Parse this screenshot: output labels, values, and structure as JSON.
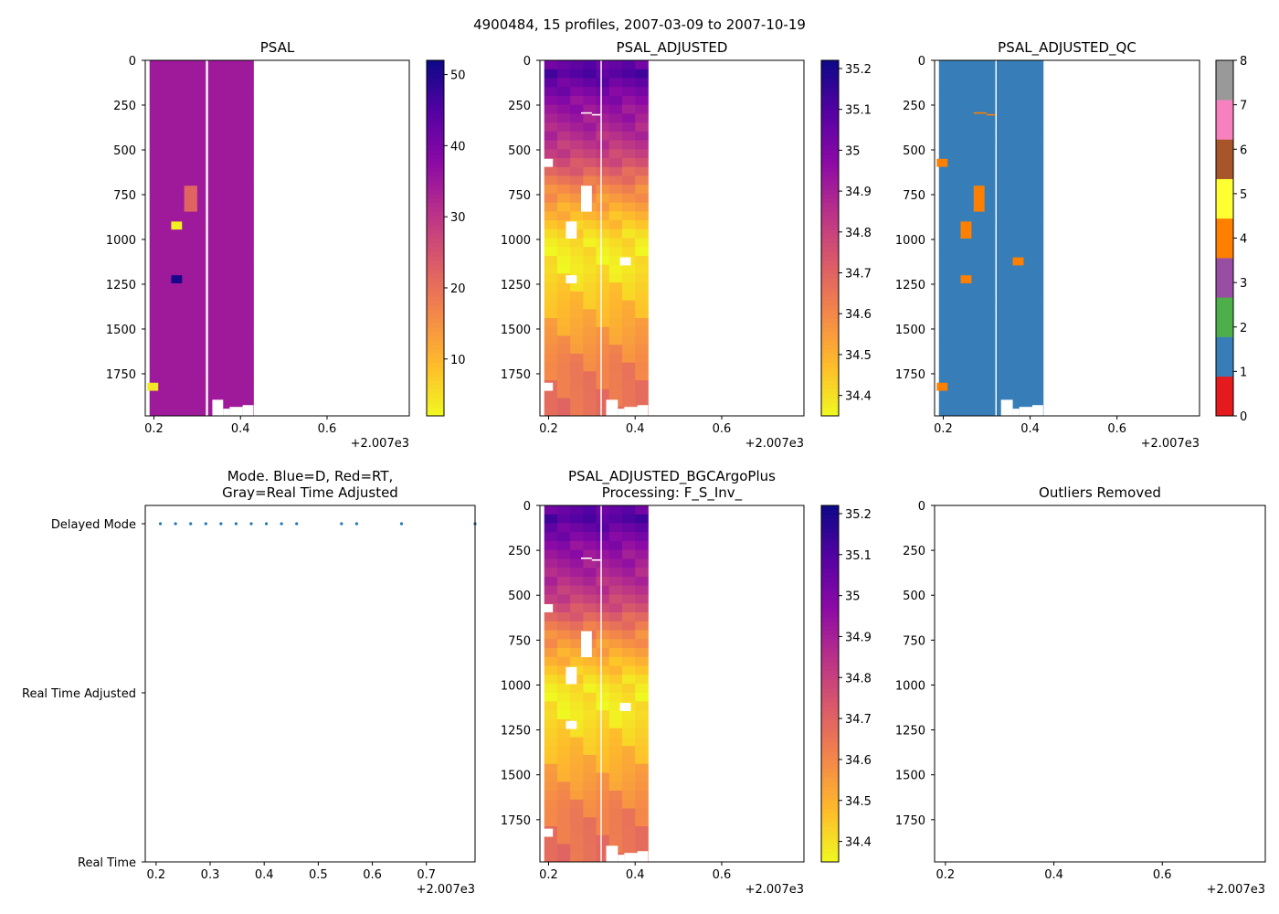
{
  "figure_title": "4900484, 15 profiles, 2007-03-09 to 2007-10-19",
  "chart_data": [
    {
      "id": "psal",
      "type": "heatmap",
      "title": "PSAL",
      "xlim": [
        2007.18,
        2007.79
      ],
      "ylim": [
        1985,
        0
      ],
      "x_ticks": [
        0.2,
        0.4,
        0.6
      ],
      "x_offset_label": "+2.007e3",
      "y_ticks": [
        0,
        250,
        500,
        750,
        1000,
        1250,
        1500,
        1750
      ],
      "colormap": "plasma_r",
      "clim": [
        2,
        52
      ],
      "colorbar_ticks": [
        10,
        20,
        30,
        40,
        50
      ],
      "background_value": 34.8,
      "profile_x": [
        2007.19,
        2007.22,
        2007.25,
        2007.28,
        2007.31,
        2007.34,
        2007.37,
        2007.4
      ],
      "profile_right_edge": 2007.43,
      "anomalies": [
        {
          "x0": 2007.27,
          "x1": 2007.3,
          "y0": 700,
          "y1": 845,
          "value": 22
        },
        {
          "x0": 2007.24,
          "x1": 2007.265,
          "y0": 900,
          "y1": 945,
          "value": 3
        },
        {
          "x0": 2007.24,
          "x1": 2007.265,
          "y0": 1200,
          "y1": 1245,
          "value": 51
        },
        {
          "x0": 2007.185,
          "x1": 2007.21,
          "y0": 1800,
          "y1": 1845,
          "value": 4
        }
      ],
      "gaps": [
        {
          "x0": 2007.32,
          "x1": 2007.325,
          "y0": 0,
          "y1": 1985
        },
        {
          "x0": 2007.335,
          "x1": 2007.36,
          "y0": 1895,
          "y1": 1985
        },
        {
          "x0": 2007.36,
          "x1": 2007.375,
          "y0": 1945,
          "y1": 1985
        },
        {
          "x0": 2007.375,
          "x1": 2007.405,
          "y0": 1935,
          "y1": 1985
        },
        {
          "x0": 2007.405,
          "x1": 2007.43,
          "y0": 1925,
          "y1": 1985
        }
      ]
    },
    {
      "id": "psal_adjusted",
      "type": "heatmap",
      "title": "PSAL_ADJUSTED",
      "xlim": [
        2007.18,
        2007.79
      ],
      "ylim": [
        1985,
        0
      ],
      "x_ticks": [
        0.2,
        0.4,
        0.6
      ],
      "x_offset_label": "+2.007e3",
      "y_ticks": [
        0,
        250,
        500,
        750,
        1000,
        1250,
        1500,
        1750
      ],
      "colormap": "plasma_r",
      "clim": [
        34.35,
        35.22
      ],
      "colorbar_ticks": [
        34.4,
        34.5,
        34.6,
        34.7,
        34.8,
        34.9,
        35.0,
        35.1,
        35.2
      ],
      "profile_x": [
        2007.19,
        2007.22,
        2007.25,
        2007.28,
        2007.31,
        2007.34,
        2007.37,
        2007.4
      ],
      "profile_right_edge": 2007.43,
      "depth_profile": [
        {
          "z": 0,
          "v": 35.0
        },
        {
          "z": 50,
          "v": 35.12
        },
        {
          "z": 120,
          "v": 35.05
        },
        {
          "z": 250,
          "v": 34.95
        },
        {
          "z": 400,
          "v": 34.88
        },
        {
          "z": 550,
          "v": 34.78
        },
        {
          "z": 700,
          "v": 34.62
        },
        {
          "z": 850,
          "v": 34.5
        },
        {
          "z": 1000,
          "v": 34.4
        },
        {
          "z": 1150,
          "v": 34.38
        },
        {
          "z": 1300,
          "v": 34.45
        },
        {
          "z": 1500,
          "v": 34.53
        },
        {
          "z": 1700,
          "v": 34.62
        },
        {
          "z": 1985,
          "v": 34.68
        }
      ],
      "gaps": [
        {
          "x0": 2007.185,
          "x1": 2007.21,
          "y0": 550,
          "y1": 595
        },
        {
          "x0": 2007.275,
          "x1": 2007.3,
          "y0": 700,
          "y1": 845
        },
        {
          "x0": 2007.24,
          "x1": 2007.265,
          "y0": 900,
          "y1": 995
        },
        {
          "x0": 2007.24,
          "x1": 2007.265,
          "y0": 1200,
          "y1": 1245
        },
        {
          "x0": 2007.365,
          "x1": 2007.39,
          "y0": 1100,
          "y1": 1145
        },
        {
          "x0": 2007.185,
          "x1": 2007.21,
          "y0": 1800,
          "y1": 1845
        },
        {
          "x0": 2007.275,
          "x1": 2007.3,
          "y0": 290,
          "y1": 298
        },
        {
          "x0": 2007.3,
          "x1": 2007.32,
          "y0": 300,
          "y1": 308
        },
        {
          "x0": 2007.32,
          "x1": 2007.323,
          "y0": 0,
          "y1": 1985
        },
        {
          "x0": 2007.333,
          "x1": 2007.36,
          "y0": 1895,
          "y1": 1985
        },
        {
          "x0": 2007.36,
          "x1": 2007.375,
          "y0": 1945,
          "y1": 1985
        },
        {
          "x0": 2007.375,
          "x1": 2007.405,
          "y0": 1935,
          "y1": 1985
        },
        {
          "x0": 2007.405,
          "x1": 2007.43,
          "y0": 1925,
          "y1": 1985
        }
      ]
    },
    {
      "id": "psal_adjusted_qc",
      "type": "heatmap",
      "title": "PSAL_ADJUSTED_QC",
      "xlim": [
        2007.18,
        2007.79
      ],
      "ylim": [
        1985,
        0
      ],
      "x_ticks": [
        0.2,
        0.4,
        0.6
      ],
      "x_offset_label": "+2.007e3",
      "y_ticks": [
        0,
        250,
        500,
        750,
        1000,
        1250,
        1500,
        1750
      ],
      "colormap": "qc_categorical",
      "clim": [
        0,
        8
      ],
      "colorbar_ticks": [
        0,
        1,
        2,
        3,
        4,
        5,
        6,
        7,
        8
      ],
      "qc_colors": [
        "#e41a1c",
        "#377eb8",
        "#4daf4a",
        "#984ea3",
        "#ff7f00",
        "#ffff33",
        "#a65628",
        "#f781bf",
        "#999999"
      ],
      "background_value": 1,
      "profile_x": [
        2007.19,
        2007.22,
        2007.25,
        2007.28,
        2007.31,
        2007.34,
        2007.37,
        2007.4
      ],
      "profile_right_edge": 2007.43,
      "flags": [
        {
          "x0": 2007.185,
          "x1": 2007.21,
          "y0": 550,
          "y1": 595,
          "value": 4
        },
        {
          "x0": 2007.27,
          "x1": 2007.295,
          "y0": 700,
          "y1": 845,
          "value": 4
        },
        {
          "x0": 2007.24,
          "x1": 2007.265,
          "y0": 900,
          "y1": 995,
          "value": 4
        },
        {
          "x0": 2007.24,
          "x1": 2007.265,
          "y0": 1200,
          "y1": 1245,
          "value": 4
        },
        {
          "x0": 2007.36,
          "x1": 2007.385,
          "y0": 1100,
          "y1": 1145,
          "value": 4
        },
        {
          "x0": 2007.185,
          "x1": 2007.21,
          "y0": 1800,
          "y1": 1845,
          "value": 4
        },
        {
          "x0": 2007.27,
          "x1": 2007.3,
          "y0": 290,
          "y1": 298,
          "value": 4
        },
        {
          "x0": 2007.3,
          "x1": 2007.32,
          "y0": 300,
          "y1": 308,
          "value": 4
        }
      ],
      "gaps": [
        {
          "x0": 2007.32,
          "x1": 2007.323,
          "y0": 0,
          "y1": 1985
        },
        {
          "x0": 2007.333,
          "x1": 2007.36,
          "y0": 1895,
          "y1": 1985
        },
        {
          "x0": 2007.36,
          "x1": 2007.375,
          "y0": 1945,
          "y1": 1985
        },
        {
          "x0": 2007.375,
          "x1": 2007.405,
          "y0": 1935,
          "y1": 1985
        },
        {
          "x0": 2007.405,
          "x1": 2007.43,
          "y0": 1925,
          "y1": 1985
        }
      ]
    },
    {
      "id": "mode",
      "type": "scatter",
      "title": "Mode. Blue=D, Red=RT,\nGray=Real Time Adjusted",
      "xlim": [
        2007.18,
        2007.79
      ],
      "x_ticks": [
        0.2,
        0.3,
        0.4,
        0.5,
        0.6,
        0.7
      ],
      "x_offset_label": "+2.007e3",
      "y_categories": [
        "Delayed Mode",
        "Real Time Adjusted",
        "Real Time"
      ],
      "points": [
        {
          "x": 2007.208,
          "mode": "Delayed Mode"
        },
        {
          "x": 2007.236,
          "mode": "Delayed Mode"
        },
        {
          "x": 2007.264,
          "mode": "Delayed Mode"
        },
        {
          "x": 2007.292,
          "mode": "Delayed Mode"
        },
        {
          "x": 2007.32,
          "mode": "Delayed Mode"
        },
        {
          "x": 2007.348,
          "mode": "Delayed Mode"
        },
        {
          "x": 2007.376,
          "mode": "Delayed Mode"
        },
        {
          "x": 2007.404,
          "mode": "Delayed Mode"
        },
        {
          "x": 2007.432,
          "mode": "Delayed Mode"
        },
        {
          "x": 2007.46,
          "mode": "Delayed Mode"
        },
        {
          "x": 2007.543,
          "mode": "Delayed Mode"
        },
        {
          "x": 2007.571,
          "mode": "Delayed Mode"
        },
        {
          "x": 2007.654,
          "mode": "Delayed Mode"
        },
        {
          "x": 2007.79,
          "mode": "Delayed Mode"
        }
      ],
      "point_color": "#1f77b4"
    },
    {
      "id": "bgc_argo_plus",
      "type": "heatmap",
      "title": "PSAL_ADJUSTED_BGCArgoPlus\nProcessing: F_S_Inv_",
      "copy_of": "psal_adjusted",
      "xlim": [
        2007.18,
        2007.79
      ],
      "ylim": [
        1985,
        0
      ],
      "x_ticks": [
        0.2,
        0.4,
        0.6
      ],
      "x_offset_label": "+2.007e3",
      "y_ticks": [
        0,
        250,
        500,
        750,
        1000,
        1250,
        1500,
        1750
      ],
      "colormap": "plasma_r",
      "clim": [
        34.35,
        35.22
      ],
      "colorbar_ticks": [
        34.4,
        34.5,
        34.6,
        34.7,
        34.8,
        34.9,
        35.0,
        35.1,
        35.2
      ]
    },
    {
      "id": "outliers",
      "type": "scatter",
      "title": "Outliers Removed",
      "xlim": [
        2007.18,
        2007.79
      ],
      "ylim": [
        1985,
        0
      ],
      "x_ticks": [
        0.2,
        0.4,
        0.6
      ],
      "x_offset_label": "+2.007e3",
      "y_ticks": [
        0,
        250,
        500,
        750,
        1000,
        1250,
        1500,
        1750
      ],
      "points": []
    }
  ]
}
